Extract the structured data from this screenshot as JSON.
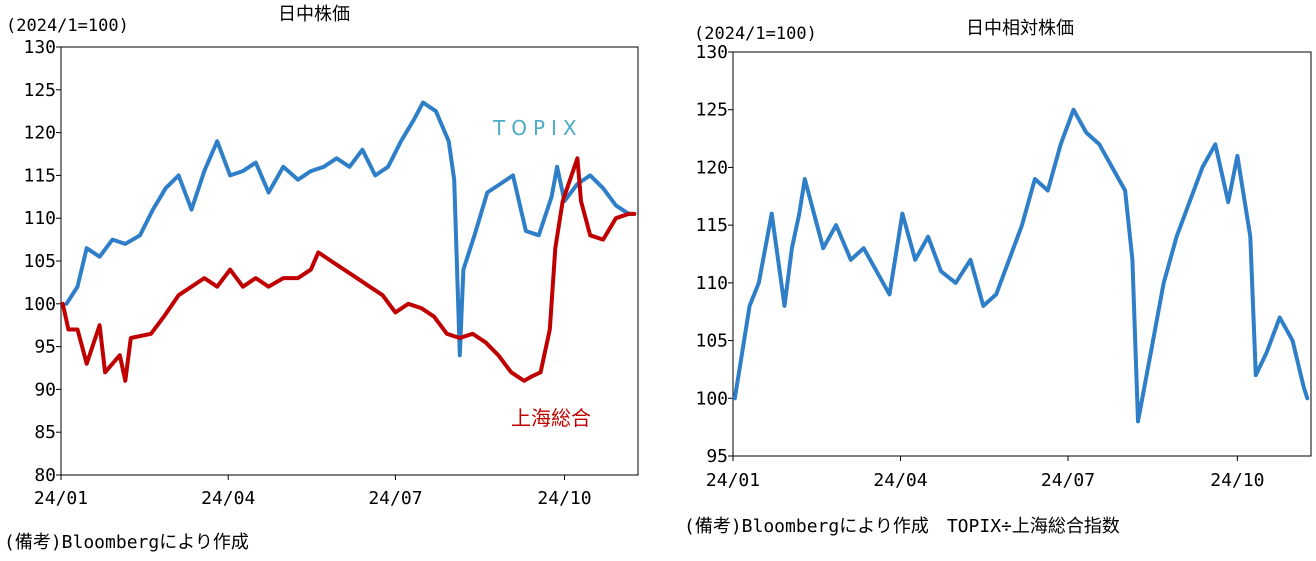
{
  "chart_data": [
    {
      "type": "line",
      "title": "日中株価",
      "unit_label": "(2024/1=100)",
      "note": "(備考)Bloombergにより作成",
      "ylim": [
        80,
        130
      ],
      "yticks": [
        80,
        85,
        90,
        95,
        100,
        105,
        110,
        115,
        120,
        125,
        130
      ],
      "x_tick_labels": [
        "24/01",
        "24/04",
        "24/07",
        "24/10"
      ],
      "grid": false,
      "series": [
        {
          "name": "TOPIX",
          "color": "#2e7fc8",
          "label_color": "#4bacc6",
          "x": [
            "2024-01-04",
            "2024-01-10",
            "2024-01-15",
            "2024-01-22",
            "2024-01-29",
            "2024-02-05",
            "2024-02-13",
            "2024-02-20",
            "2024-02-27",
            "2024-03-05",
            "2024-03-12",
            "2024-03-19",
            "2024-03-26",
            "2024-04-02",
            "2024-04-09",
            "2024-04-16",
            "2024-04-23",
            "2024-05-01",
            "2024-05-09",
            "2024-05-16",
            "2024-05-23",
            "2024-05-30",
            "2024-06-06",
            "2024-06-13",
            "2024-06-20",
            "2024-06-27",
            "2024-07-04",
            "2024-07-11",
            "2024-07-16",
            "2024-07-23",
            "2024-07-30",
            "2024-08-02",
            "2024-08-05",
            "2024-08-07",
            "2024-08-13",
            "2024-08-20",
            "2024-08-27",
            "2024-09-03",
            "2024-09-10",
            "2024-09-17",
            "2024-09-24",
            "2024-09-27",
            "2024-10-01",
            "2024-10-08",
            "2024-10-15",
            "2024-10-22",
            "2024-10-29",
            "2024-11-05",
            "2024-11-08"
          ],
          "values": [
            100,
            102,
            106.5,
            105.5,
            107.5,
            107,
            108,
            111,
            113.5,
            115,
            111,
            115.5,
            119,
            115,
            115.5,
            116.5,
            113,
            116,
            114.5,
            115.5,
            116,
            117,
            116,
            118,
            115,
            116,
            119,
            121.5,
            123.5,
            122.5,
            119,
            114.5,
            94,
            104,
            108,
            113,
            114,
            115,
            108.5,
            108,
            112.5,
            116,
            112,
            114,
            115,
            113.5,
            111.5,
            110.5,
            110.5
          ]
        },
        {
          "name": "上海総合",
          "color": "#c00000",
          "label_color": "#c00000",
          "x": [
            "2024-01-02",
            "2024-01-05",
            "2024-01-10",
            "2024-01-15",
            "2024-01-22",
            "2024-01-25",
            "2024-02-02",
            "2024-02-05",
            "2024-02-08",
            "2024-02-19",
            "2024-02-26",
            "2024-03-05",
            "2024-03-12",
            "2024-03-19",
            "2024-03-26",
            "2024-04-02",
            "2024-04-09",
            "2024-04-16",
            "2024-04-23",
            "2024-05-01",
            "2024-05-09",
            "2024-05-16",
            "2024-05-20",
            "2024-05-27",
            "2024-06-03",
            "2024-06-10",
            "2024-06-17",
            "2024-06-24",
            "2024-07-01",
            "2024-07-08",
            "2024-07-15",
            "2024-07-22",
            "2024-07-29",
            "2024-08-05",
            "2024-08-12",
            "2024-08-19",
            "2024-08-26",
            "2024-09-02",
            "2024-09-09",
            "2024-09-13",
            "2024-09-18",
            "2024-09-23",
            "2024-09-26",
            "2024-09-30",
            "2024-10-08",
            "2024-10-10",
            "2024-10-15",
            "2024-10-22",
            "2024-10-29",
            "2024-11-05",
            "2024-11-08"
          ],
          "values": [
            100,
            97,
            97,
            93,
            97.5,
            92,
            94,
            91,
            96,
            96.5,
            98.5,
            101,
            102,
            103,
            102,
            104,
            102,
            103,
            102,
            103,
            103,
            104,
            106,
            105,
            104,
            103,
            102,
            101,
            99,
            100,
            99.5,
            98.5,
            96.5,
            96,
            96.5,
            95.5,
            94,
            92,
            91,
            91.5,
            92,
            97,
            106.5,
            112,
            117,
            112,
            108,
            107.5,
            110,
            110.5,
            110.5
          ]
        }
      ]
    },
    {
      "type": "line",
      "title": "日中相対株価",
      "unit_label": "(2024/1=100)",
      "note": "(備考)Bloombergにより作成　TOPIX÷上海総合指数",
      "ylim": [
        95,
        130
      ],
      "yticks": [
        95,
        100,
        105,
        110,
        115,
        120,
        125,
        130
      ],
      "x_tick_labels": [
        "24/01",
        "24/04",
        "24/07",
        "24/10"
      ],
      "grid": false,
      "series": [
        {
          "name": "",
          "color": "#2e7fc8",
          "x": [
            "2024-01-02",
            "2024-01-05",
            "2024-01-10",
            "2024-01-15",
            "2024-01-22",
            "2024-01-29",
            "2024-02-02",
            "2024-02-06",
            "2024-02-09",
            "2024-02-19",
            "2024-02-26",
            "2024-03-05",
            "2024-03-12",
            "2024-03-19",
            "2024-03-26",
            "2024-04-02",
            "2024-04-09",
            "2024-04-16",
            "2024-04-23",
            "2024-05-01",
            "2024-05-09",
            "2024-05-16",
            "2024-05-23",
            "2024-05-30",
            "2024-06-06",
            "2024-06-13",
            "2024-06-20",
            "2024-06-27",
            "2024-07-04",
            "2024-07-11",
            "2024-07-18",
            "2024-07-25",
            "2024-08-01",
            "2024-08-05",
            "2024-08-08",
            "2024-08-15",
            "2024-08-22",
            "2024-08-29",
            "2024-09-05",
            "2024-09-12",
            "2024-09-19",
            "2024-09-26",
            "2024-10-01",
            "2024-10-08",
            "2024-10-11",
            "2024-10-17",
            "2024-10-24",
            "2024-10-31",
            "2024-11-06",
            "2024-11-08"
          ],
          "values": [
            100,
            103,
            108,
            110,
            116,
            108,
            113,
            116,
            119,
            113,
            115,
            112,
            113,
            111,
            109,
            116,
            112,
            114,
            111,
            110,
            112,
            108,
            109,
            112,
            115,
            119,
            118,
            122,
            125,
            123,
            122,
            120,
            118,
            112,
            98,
            104,
            110,
            114,
            117,
            120,
            122,
            117,
            121,
            114,
            102,
            104,
            107,
            105,
            101,
            100
          ]
        }
      ]
    }
  ]
}
